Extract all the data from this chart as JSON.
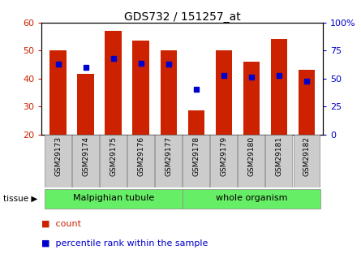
{
  "title": "GDS732 / 151257_at",
  "samples": [
    "GSM29173",
    "GSM29174",
    "GSM29175",
    "GSM29176",
    "GSM29177",
    "GSM29178",
    "GSM29179",
    "GSM29180",
    "GSM29181",
    "GSM29182"
  ],
  "counts": [
    50.0,
    41.5,
    57.0,
    53.5,
    50.0,
    28.5,
    50.0,
    46.0,
    54.0,
    43.0
  ],
  "percentiles": [
    45.0,
    44.0,
    47.0,
    45.5,
    45.0,
    36.0,
    41.0,
    40.5,
    41.0,
    39.0
  ],
  "bar_color": "#cc2200",
  "dot_color": "#0000cc",
  "ymin": 20,
  "ymax": 60,
  "yticks_left": [
    20,
    30,
    40,
    50,
    60
  ],
  "yticks_right": [
    0,
    25,
    50,
    75,
    100
  ],
  "tissue_groups": {
    "Malpighian tubule": [
      0,
      1,
      2,
      3,
      4
    ],
    "whole organism": [
      5,
      6,
      7,
      8,
      9
    ]
  },
  "tissue_color": "#66ee66",
  "xlabel_color": "#cc2200",
  "ylabel_right_color": "#0000cc",
  "legend_count_label": "count",
  "legend_pct_label": "percentile rank within the sample",
  "xtick_bg_color": "#cccccc",
  "plot_bg": "#ffffff",
  "fig_width": 4.45,
  "fig_height": 3.45
}
